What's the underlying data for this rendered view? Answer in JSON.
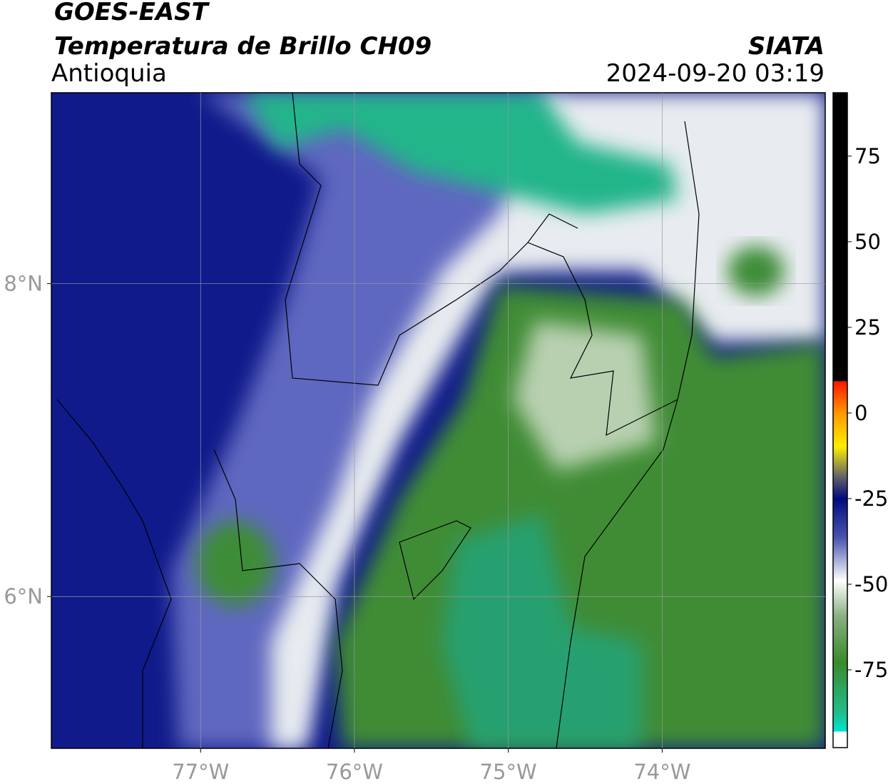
{
  "header": {
    "title": "GOES-EAST",
    "subtitle": "Temperatura de Brillo CH09",
    "region": "Antioquia",
    "source": "SIATA",
    "datetime": "2024-09-20 03:19"
  },
  "map": {
    "xlim": [
      -77.97,
      -72.94
    ],
    "ylim": [
      5.03,
      9.22
    ],
    "xticks": [
      {
        "value": -77,
        "label": "77°W"
      },
      {
        "value": -76,
        "label": "76°W"
      },
      {
        "value": -75,
        "label": "75°W"
      },
      {
        "value": -74,
        "label": "74°W"
      }
    ],
    "yticks": [
      {
        "value": 8,
        "label": "8°N"
      },
      {
        "value": 6,
        "label": "6°N"
      }
    ]
  },
  "colorbar": {
    "lim": [
      -97.7,
      93.5
    ],
    "ticks": [
      -75,
      -50,
      -25,
      0,
      25,
      50,
      75
    ]
  }
}
